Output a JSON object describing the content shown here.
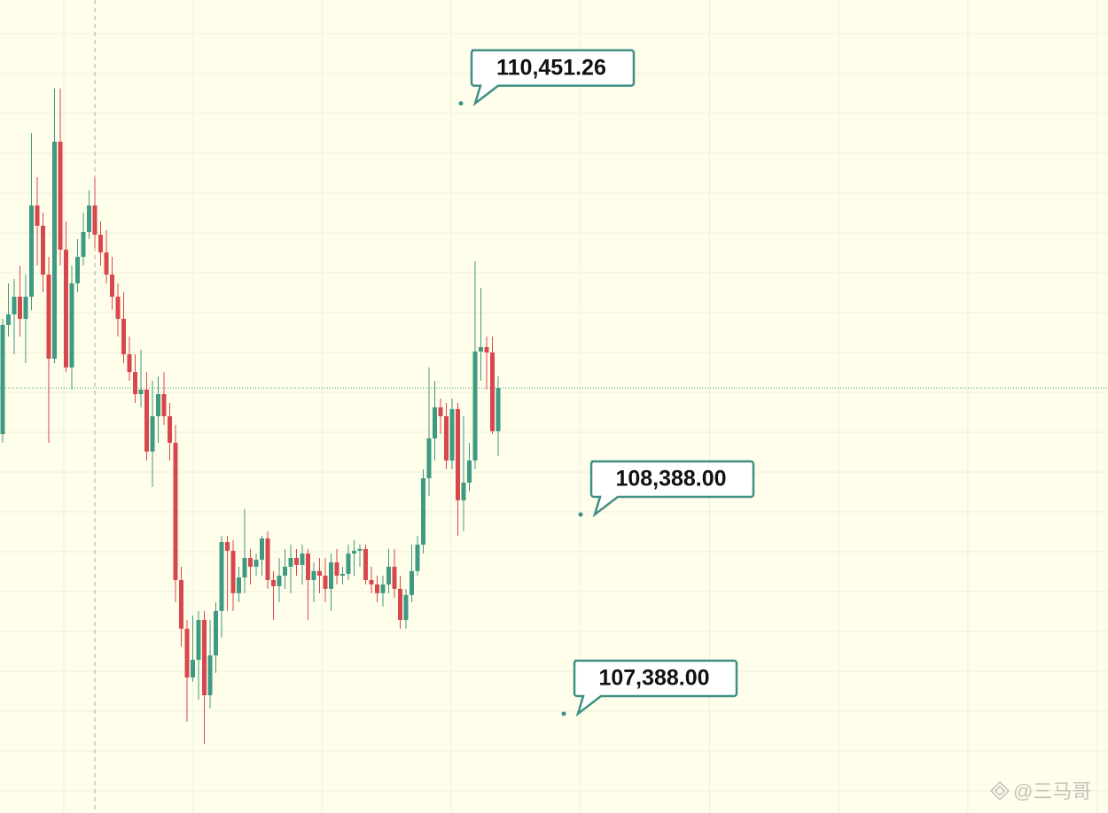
{
  "chart_data": {
    "type": "candlestick",
    "open": [
      108792,
      109339,
      109392,
      109481,
      109370,
      109481,
      109939,
      109837,
      109592,
      109170,
      110259,
      109717,
      109126,
      109548,
      109681,
      109806,
      109939,
      109792,
      109703,
      109592,
      109481,
      109370,
      109192,
      109103,
      108992,
      109015,
      108704,
      108881,
      108992,
      108881,
      108748,
      108059,
      107815,
      107570,
      107659,
      107859,
      107481,
      107681,
      107904,
      108250,
      108206,
      107993,
      108072,
      108170,
      108126,
      108161,
      108268,
      108059,
      108028,
      108081,
      108126,
      108170,
      108135,
      108192,
      108059,
      108104,
      108081,
      108015,
      108148,
      108081,
      108090,
      108192,
      108206,
      108215,
      108059,
      108037,
      107993,
      108037,
      108126,
      108015,
      107859,
      107984,
      108104,
      108237,
      108570,
      108770,
      108926,
      108881,
      108659,
      108917,
      108459,
      108548,
      108659,
      109206,
      109228,
      109201,
      108806
    ],
    "high": [
      109370,
      109548,
      109570,
      109637,
      109592,
      110303,
      110081,
      109903,
      109681,
      110526,
      110526,
      109859,
      109637,
      109770,
      109903,
      110015,
      110081,
      109859,
      109815,
      109681,
      109548,
      109503,
      109281,
      109192,
      109215,
      109103,
      109059,
      109081,
      109103,
      108948,
      108837,
      108126,
      107859,
      107881,
      107904,
      107904,
      107859,
      107948,
      108281,
      108281,
      108259,
      108126,
      108415,
      108215,
      108192,
      108281,
      108304,
      108104,
      108170,
      108215,
      108237,
      108215,
      108237,
      108215,
      108148,
      108170,
      108170,
      108192,
      108215,
      108126,
      108237,
      108259,
      108237,
      108237,
      108126,
      108081,
      108081,
      108215,
      108215,
      108081,
      108015,
      108237,
      108281,
      108615,
      109126,
      109059,
      108970,
      108948,
      108970,
      108948,
      108881,
      108748,
      109659,
      109526,
      109281,
      109281,
      109081
    ],
    "low": [
      108748,
      109281,
      109192,
      109281,
      109148,
      109415,
      109637,
      109503,
      108748,
      109148,
      109637,
      109103,
      109015,
      109503,
      109637,
      109770,
      109726,
      109637,
      109548,
      109415,
      109281,
      109148,
      109059,
      108948,
      108926,
      108659,
      108526,
      108748,
      108837,
      108659,
      107948,
      107726,
      107348,
      107548,
      107459,
      107237,
      107415,
      107593,
      107770,
      107904,
      107904,
      107948,
      107993,
      108037,
      108081,
      108081,
      108015,
      107859,
      107948,
      108015,
      107993,
      108081,
      108037,
      107859,
      107948,
      107993,
      107948,
      107904,
      108037,
      108037,
      108059,
      108081,
      108126,
      108037,
      107993,
      107948,
      107926,
      107993,
      107970,
      107815,
      107815,
      107948,
      108081,
      108192,
      108481,
      108659,
      108792,
      108615,
      108615,
      108281,
      108304,
      108504,
      108615,
      109059,
      109015,
      108792,
      108681
    ],
    "close": [
      109339,
      109392,
      109481,
      109370,
      109481,
      109939,
      109837,
      109592,
      109170,
      110259,
      109717,
      109126,
      109548,
      109681,
      109806,
      109939,
      109792,
      109703,
      109592,
      109481,
      109370,
      109192,
      109103,
      108992,
      109015,
      108704,
      108881,
      108992,
      108881,
      108748,
      108059,
      107815,
      107570,
      107659,
      107859,
      107481,
      107681,
      107904,
      108250,
      108206,
      107993,
      108072,
      108170,
      108126,
      108161,
      108268,
      108059,
      108028,
      108081,
      108126,
      108170,
      108135,
      108192,
      108059,
      108104,
      108081,
      108015,
      108148,
      108081,
      108090,
      108192,
      108206,
      108215,
      108059,
      108037,
      107993,
      108037,
      108126,
      108015,
      107859,
      107984,
      108104,
      108237,
      108570,
      108770,
      108926,
      108881,
      108659,
      108917,
      108459,
      108548,
      108659,
      109206,
      109228,
      109201,
      108806,
      109023
    ],
    "up_color": "#3f9a82",
    "down_color": "#d9474e",
    "ylim": [
      106890,
      110970
    ],
    "price_line": 109023,
    "annotations": [
      {
        "label": "110,451.26",
        "value": 110451.26
      },
      {
        "label": "108,388.00",
        "value": 108388
      },
      {
        "label": "107,388.00",
        "value": 107388
      }
    ],
    "watermark": "@三马哥"
  }
}
